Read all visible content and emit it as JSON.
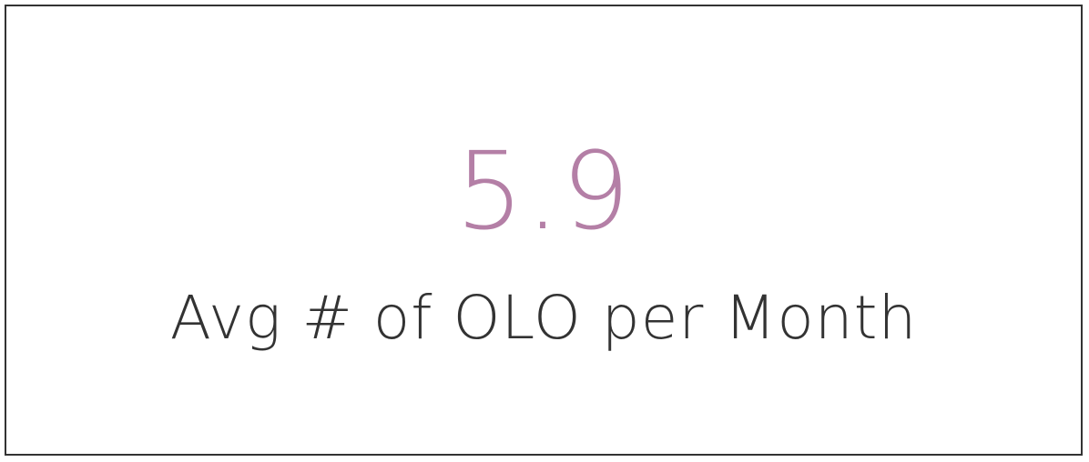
{
  "chart_data": {
    "type": "table",
    "value": "5.9",
    "label": "Avg # of OLO per Month",
    "value_color": "#b47fa6"
  }
}
